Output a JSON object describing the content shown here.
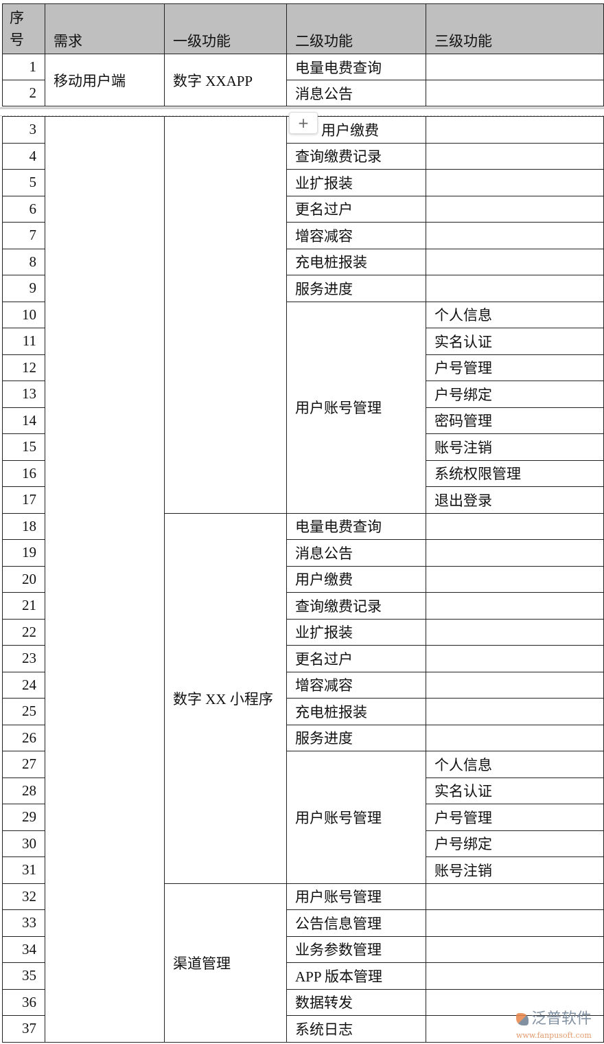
{
  "headers": [
    "序\n号",
    "需求",
    "一级功能",
    "二级功能",
    "三级功能"
  ],
  "part1": {
    "requirement": "移动用户端",
    "level1": "数字 XXAPP",
    "rows": [
      {
        "no": "1",
        "level2": "电量电费查询",
        "level3": ""
      },
      {
        "no": "2",
        "level2": "消息公告",
        "level3": ""
      }
    ]
  },
  "part2": {
    "requirement": "",
    "groups": [
      {
        "level1": "",
        "items": [
          {
            "level2": "用户缴费",
            "level3": [
              ""
            ]
          },
          {
            "level2": "查询缴费记录",
            "level3": [
              ""
            ]
          },
          {
            "level2": "业扩报装",
            "level3": [
              ""
            ]
          },
          {
            "level2": "更名过户",
            "level3": [
              ""
            ]
          },
          {
            "level2": "增容减容",
            "level3": [
              ""
            ]
          },
          {
            "level2": "充电桩报装",
            "level3": [
              ""
            ]
          },
          {
            "level2": "服务进度",
            "level3": [
              ""
            ]
          },
          {
            "level2": "用户账号管理",
            "level3": [
              "个人信息",
              "实名认证",
              "户号管理",
              "户号绑定",
              "密码管理",
              "账号注销",
              "系统权限管理",
              "退出登录"
            ]
          }
        ]
      },
      {
        "level1": "数字 XX 小程序",
        "items": [
          {
            "level2": "电量电费查询",
            "level3": [
              ""
            ]
          },
          {
            "level2": "消息公告",
            "level3": [
              ""
            ]
          },
          {
            "level2": "用户缴费",
            "level3": [
              ""
            ]
          },
          {
            "level2": "查询缴费记录",
            "level3": [
              ""
            ]
          },
          {
            "level2": "业扩报装",
            "level3": [
              ""
            ]
          },
          {
            "level2": "更名过户",
            "level3": [
              ""
            ]
          },
          {
            "level2": "增容减容",
            "level3": [
              ""
            ]
          },
          {
            "level2": "充电桩报装",
            "level3": [
              ""
            ]
          },
          {
            "level2": "服务进度",
            "level3": [
              ""
            ]
          },
          {
            "level2": "用户账号管理",
            "level3": [
              "个人信息",
              "实名认证",
              "户号管理",
              "户号绑定",
              "账号注销"
            ]
          }
        ]
      },
      {
        "level1": "渠道管理",
        "items": [
          {
            "level2": "用户账号管理",
            "level3": [
              ""
            ]
          },
          {
            "level2": "公告信息管理",
            "level3": [
              ""
            ]
          },
          {
            "level2": "业务参数管理",
            "level3": [
              ""
            ]
          },
          {
            "level2": "APP  版本管理",
            "level3": [
              ""
            ]
          },
          {
            "level2": "数据转发",
            "level3": [
              ""
            ]
          },
          {
            "level2": "系统日志",
            "level3": [
              ""
            ]
          }
        ]
      }
    ],
    "start_no": 3
  },
  "add_row_button": "+",
  "watermark": {
    "name": "泛普软件",
    "url": "www.fanpusoft.com"
  },
  "colors": {
    "header_bg": "#bfbfbf",
    "border": "#222222"
  }
}
